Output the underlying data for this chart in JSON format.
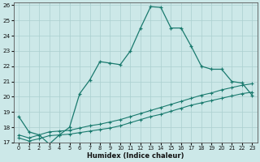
{
  "xlabel": "Humidex (Indice chaleur)",
  "x_values": [
    0,
    1,
    2,
    3,
    4,
    5,
    6,
    7,
    8,
    9,
    10,
    11,
    12,
    13,
    14,
    15,
    16,
    17,
    18,
    19,
    20,
    21,
    22,
    23
  ],
  "line1_y": [
    18.7,
    17.7,
    17.5,
    16.9,
    17.5,
    18.0,
    20.2,
    21.1,
    22.3,
    22.2,
    22.1,
    23.0,
    24.5,
    25.9,
    25.85,
    24.5,
    24.5,
    23.3,
    22.0,
    21.8,
    21.8,
    21.0,
    20.9,
    20.1
  ],
  "line2_y": [
    17.3,
    17.1,
    17.25,
    17.45,
    17.5,
    17.55,
    17.65,
    17.75,
    17.85,
    17.95,
    18.1,
    18.3,
    18.5,
    18.7,
    18.85,
    19.05,
    19.25,
    19.45,
    19.6,
    19.75,
    19.9,
    20.05,
    20.2,
    20.3
  ],
  "line3_y": [
    17.5,
    17.3,
    17.5,
    17.7,
    17.75,
    17.8,
    17.95,
    18.1,
    18.2,
    18.35,
    18.5,
    18.7,
    18.9,
    19.1,
    19.3,
    19.5,
    19.7,
    19.9,
    20.1,
    20.25,
    20.45,
    20.6,
    20.75,
    20.85
  ],
  "ylim": [
    17,
    26
  ],
  "xlim": [
    0,
    23
  ],
  "yticks": [
    17,
    18,
    19,
    20,
    21,
    22,
    23,
    24,
    25,
    26
  ],
  "xticks": [
    0,
    1,
    2,
    3,
    4,
    5,
    6,
    7,
    8,
    9,
    10,
    11,
    12,
    13,
    14,
    15,
    16,
    17,
    18,
    19,
    20,
    21,
    22,
    23
  ],
  "line_color": "#1a7a6e",
  "bg_color": "#cce8e8",
  "grid_color": "#aacfcf"
}
